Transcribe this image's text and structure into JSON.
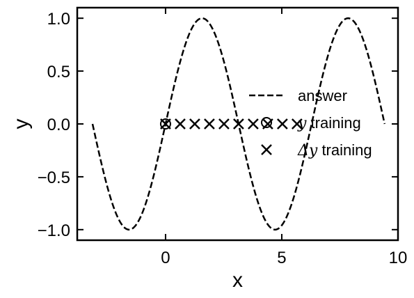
{
  "chart_data": {
    "type": "line",
    "xlabel": "x",
    "ylabel": "y",
    "xlim": [
      -3.8,
      10.0
    ],
    "ylim": [
      -1.1,
      1.1
    ],
    "xticks": [
      0,
      5,
      10
    ],
    "yticks": [
      -1.0,
      -0.5,
      0.0,
      0.5,
      1.0
    ],
    "xtick_labels": [
      "0",
      "5",
      "10"
    ],
    "ytick_labels": [
      "−1.0",
      "−0.5",
      "0.0",
      "0.5",
      "1.0"
    ],
    "grid": false,
    "legend_position": "center-right",
    "series": [
      {
        "name": "answer",
        "style": "dashed-line",
        "function": "sin",
        "x_range": [
          -3.1416,
          9.4248
        ]
      },
      {
        "name_math": "y",
        "name_text": " training",
        "style": "circle-marker",
        "x": [
          0.0
        ],
        "y": [
          0.0
        ]
      },
      {
        "name_math": "Δy",
        "name_text": " training",
        "style": "x-marker",
        "x": [
          0.0,
          0.6283,
          1.2566,
          1.885,
          2.5133,
          3.1416,
          3.7699,
          4.3982,
          5.0265,
          5.6549
        ],
        "y": [
          0,
          0,
          0,
          0,
          0,
          0,
          0,
          0,
          0,
          0
        ]
      }
    ]
  }
}
